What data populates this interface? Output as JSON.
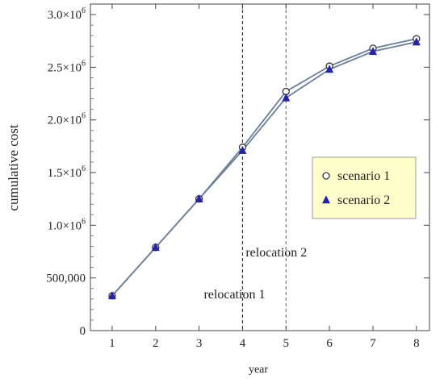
{
  "chart_data": {
    "type": "line",
    "title": "",
    "xlabel": "year",
    "ylabel": "cumulative cost",
    "x": [
      1,
      2,
      3,
      4,
      5,
      6,
      7,
      8
    ],
    "xlim": [
      0.5,
      8.3
    ],
    "ylim": [
      0,
      3100000
    ],
    "x_ticks": [
      {
        "value": 1,
        "label": "1"
      },
      {
        "value": 2,
        "label": "2"
      },
      {
        "value": 3,
        "label": "3"
      },
      {
        "value": 4,
        "label": "4"
      },
      {
        "value": 5,
        "label": "5"
      },
      {
        "value": 6,
        "label": "6"
      },
      {
        "value": 7,
        "label": "7"
      },
      {
        "value": 8,
        "label": "8"
      }
    ],
    "y_ticks": [
      {
        "value": 0,
        "label": "0"
      },
      {
        "value": 500000,
        "label": "500,000"
      },
      {
        "value": 1000000,
        "label": "1.0×10",
        "exp": "6"
      },
      {
        "value": 1500000,
        "label": "1.5×10",
        "exp": "6"
      },
      {
        "value": 2000000,
        "label": "2.0×10",
        "exp": "6"
      },
      {
        "value": 2500000,
        "label": "2.5×10",
        "exp": "6"
      },
      {
        "value": 3000000,
        "label": "3.0×10",
        "exp": "6"
      }
    ],
    "series": [
      {
        "name": "scenario 1",
        "marker": "circle",
        "color": "#333333",
        "values": [
          330000,
          790000,
          1250000,
          1740000,
          2270000,
          2510000,
          2680000,
          2770000
        ]
      },
      {
        "name": "scenario 2",
        "marker": "triangle",
        "color": "#2222aa",
        "values": [
          330000,
          790000,
          1250000,
          1710000,
          2210000,
          2480000,
          2650000,
          2740000
        ]
      }
    ],
    "line_color": "#6a7f9a",
    "reference_lines": [
      {
        "x": 4,
        "label": "relocation 1",
        "style": "dashed"
      },
      {
        "x": 5,
        "label": "relocation 2",
        "style": "dashed"
      }
    ],
    "legend": {
      "position": "right",
      "background": "#ffffcc"
    },
    "grid": false
  }
}
